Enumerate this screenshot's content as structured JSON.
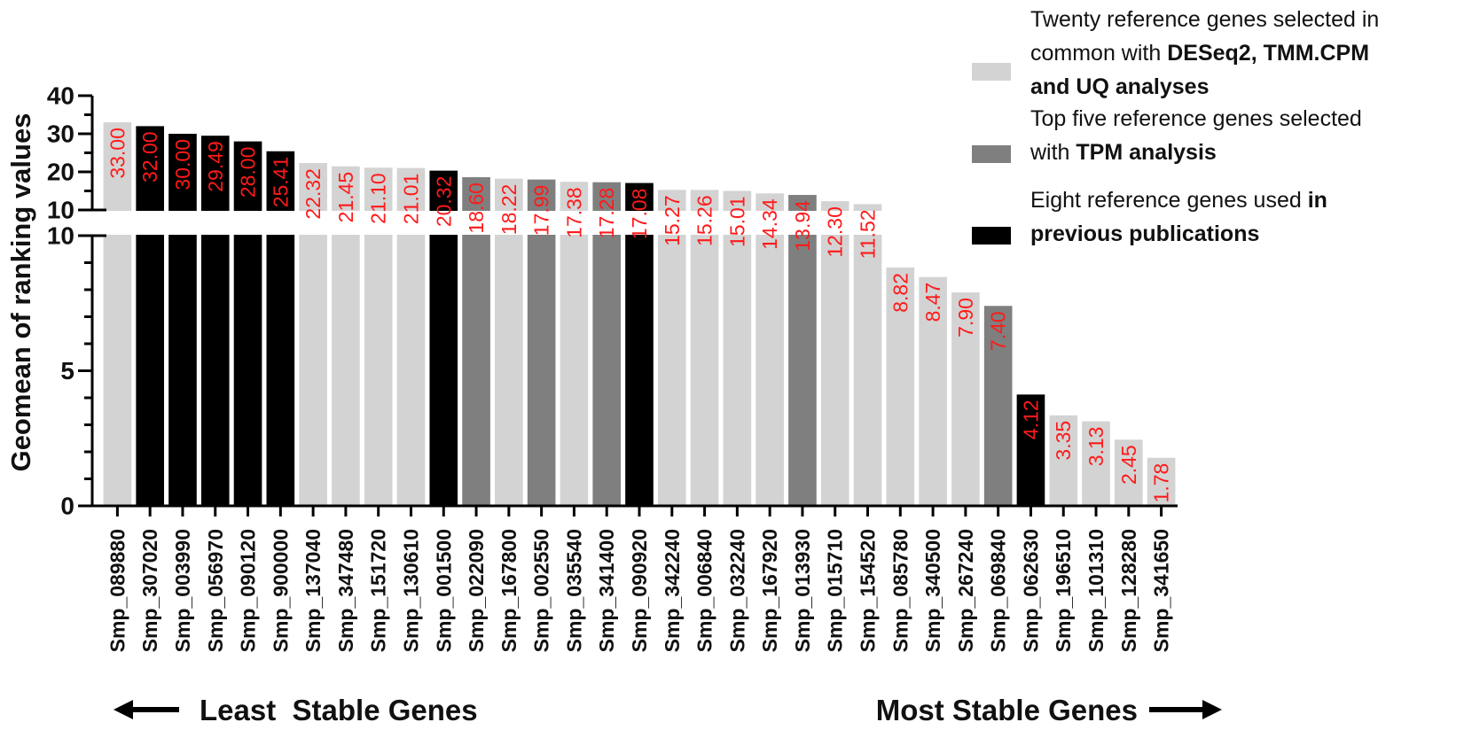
{
  "chart_data": {
    "type": "bar",
    "ylabel": "Geomean of ranking values",
    "y_axis": {
      "broken": true,
      "lower_range": [
        0,
        10
      ],
      "upper_range": [
        10,
        40
      ],
      "lower_ticks": [
        "0",
        "5",
        "10"
      ],
      "upper_ticks": [
        "10",
        "20",
        "30",
        "40"
      ]
    },
    "categories": [
      "Smp_089880",
      "Smp_307020",
      "Smp_003990",
      "Smp_056970",
      "Smp_090120",
      "Smp_900000",
      "Smp_137040",
      "Smp_347480",
      "Smp_151720",
      "Smp_130610",
      "Smp_001500",
      "Smp_022090",
      "Smp_167800",
      "Smp_002550",
      "Smp_035540",
      "Smp_341400",
      "Smp_090920",
      "Smp_342240",
      "Smp_006840",
      "Smp_032240",
      "Smp_167920",
      "Smp_013930",
      "Smp_015710",
      "Smp_154520",
      "Smp_085780",
      "Smp_340500",
      "Smp_267240",
      "Smp_069840",
      "Smp_062630",
      "Smp_196510",
      "Smp_101310",
      "Smp_128280",
      "Smp_341650"
    ],
    "values": [
      33.0,
      32.0,
      30.0,
      29.49,
      28.0,
      25.41,
      22.32,
      21.45,
      21.1,
      21.01,
      20.32,
      18.6,
      18.22,
      17.99,
      17.38,
      17.28,
      17.08,
      15.27,
      15.26,
      15.01,
      14.34,
      13.94,
      12.3,
      11.52,
      8.82,
      8.47,
      7.9,
      7.4,
      4.12,
      3.35,
      3.13,
      2.45,
      1.78
    ],
    "value_labels": [
      "33.00",
      "32.00",
      "30.00",
      "29.49",
      "28.00",
      "25.41",
      "22.32",
      "21.45",
      "21.10",
      "21.01",
      "20.32",
      "18.60",
      "18.22",
      "17.99",
      "17.38",
      "17.28",
      "17.08",
      "15.27",
      "15.26",
      "15.01",
      "14.34",
      "13.94",
      "12.30",
      "11.52",
      "8.82",
      "8.47",
      "7.90",
      "7.40",
      "4.12",
      "3.35",
      "3.13",
      "2.45",
      "1.78"
    ],
    "groups": [
      "light",
      "black",
      "black",
      "black",
      "black",
      "black",
      "light",
      "light",
      "light",
      "light",
      "black",
      "dark",
      "light",
      "dark",
      "light",
      "dark",
      "black",
      "light",
      "light",
      "light",
      "light",
      "dark",
      "light",
      "light",
      "light",
      "light",
      "light",
      "dark",
      "black",
      "light",
      "light",
      "light",
      "light"
    ],
    "colors": {
      "light": "#d3d3d3",
      "dark": "#7f7f7f",
      "black": "#000000",
      "value_label": "#ff1a1a"
    },
    "legend": {
      "placement": "top-right",
      "items": [
        {
          "key": "light",
          "lines": [
            [
              {
                "text": "Twenty reference genes selected in",
                "bold": false
              }
            ],
            [
              {
                "text": "common with ",
                "bold": false
              },
              {
                "text": "DESeq2, TMM.CPM",
                "bold": true
              }
            ],
            [
              {
                "text": "and UQ analyses",
                "bold": true
              }
            ]
          ]
        },
        {
          "key": "dark",
          "lines": [
            [
              {
                "text": "Top five reference genes selected",
                "bold": false
              }
            ],
            [
              {
                "text": "with ",
                "bold": false
              },
              {
                "text": "TPM analysis",
                "bold": true
              }
            ]
          ]
        },
        {
          "key": "black",
          "lines": [
            [
              {
                "text": "Eight reference genes used ",
                "bold": false
              },
              {
                "text": "in",
                "bold": true
              }
            ],
            [
              {
                "text": "previous publications",
                "bold": true
              }
            ]
          ]
        }
      ]
    },
    "annotations": {
      "least_stable": "Least  Stable Genes",
      "most_stable": "Most Stable Genes"
    }
  }
}
